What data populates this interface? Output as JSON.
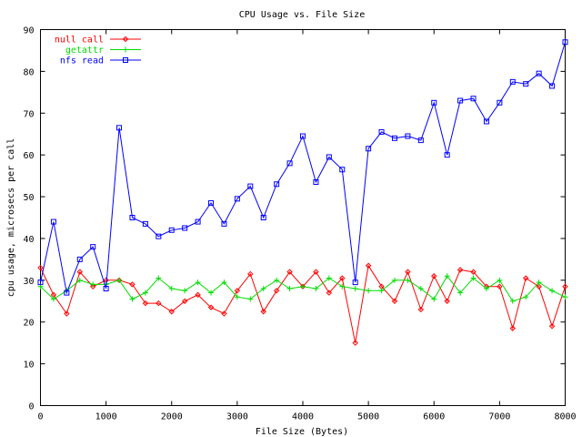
{
  "chart_data": {
    "type": "line",
    "title": "CPU Usage vs. File Size",
    "xlabel": "File Size (Bytes)",
    "ylabel": "cpu usage, microsecs per call",
    "xlim": [
      0,
      8000
    ],
    "ylim": [
      0,
      90
    ],
    "xticks": [
      0,
      1000,
      2000,
      3000,
      4000,
      5000,
      6000,
      7000,
      8000
    ],
    "yticks": [
      0,
      10,
      20,
      30,
      40,
      50,
      60,
      70,
      80,
      90
    ],
    "grid": false,
    "legend_position": "top-left",
    "x": [
      0,
      200,
      400,
      600,
      800,
      1000,
      1200,
      1400,
      1600,
      1800,
      2000,
      2200,
      2400,
      2600,
      2800,
      3000,
      3200,
      3400,
      3600,
      3800,
      4000,
      4200,
      4400,
      4600,
      4800,
      5000,
      5200,
      5400,
      5600,
      5800,
      6000,
      6200,
      6400,
      6600,
      6800,
      7000,
      7200,
      7400,
      7600,
      7800,
      8000
    ],
    "series": [
      {
        "name": "null call",
        "color": "#ff0000",
        "marker": "diamond",
        "values": [
          33.0,
          26.5,
          22.0,
          32.0,
          28.5,
          30.0,
          30.0,
          29.0,
          24.5,
          24.5,
          22.5,
          25.0,
          26.5,
          23.5,
          22.0,
          27.5,
          31.5,
          22.5,
          27.5,
          32.0,
          28.5,
          32.0,
          27.0,
          30.5,
          15.0,
          33.5,
          28.5,
          25.0,
          32.0,
          23.0,
          31.0,
          25.0,
          32.5,
          32.0,
          28.5,
          28.5,
          18.5,
          30.5,
          28.5,
          19.0,
          28.5
        ]
      },
      {
        "name": "getattr",
        "color": "#00dd00",
        "marker": "plus",
        "values": [
          28.5,
          25.5,
          27.5,
          30.0,
          29.0,
          29.0,
          30.0,
          25.5,
          27.0,
          30.5,
          28.0,
          27.5,
          29.5,
          27.0,
          29.5,
          26.0,
          25.5,
          28.0,
          30.0,
          28.0,
          28.5,
          28.0,
          30.5,
          28.5,
          28.0,
          27.5,
          27.5,
          30.0,
          30.0,
          28.0,
          25.5,
          31.0,
          27.0,
          30.5,
          28.0,
          30.0,
          25.0,
          26.0,
          29.5,
          27.5,
          26.0
        ]
      },
      {
        "name": "nfs read",
        "color": "#0000ff",
        "marker": "square",
        "values": [
          29.5,
          44.0,
          27.0,
          35.0,
          38.0,
          28.0,
          66.5,
          45.0,
          43.5,
          40.5,
          42.0,
          42.5,
          44.0,
          48.5,
          43.5,
          49.5,
          52.5,
          45.0,
          53.0,
          58.0,
          64.5,
          53.5,
          59.5,
          56.5,
          29.5,
          61.5,
          65.5,
          64.0,
          64.5,
          63.5,
          72.5,
          60.0,
          73.0,
          73.5,
          68.0,
          72.5,
          77.5,
          77.0,
          79.5,
          76.5,
          87.0
        ]
      }
    ]
  }
}
